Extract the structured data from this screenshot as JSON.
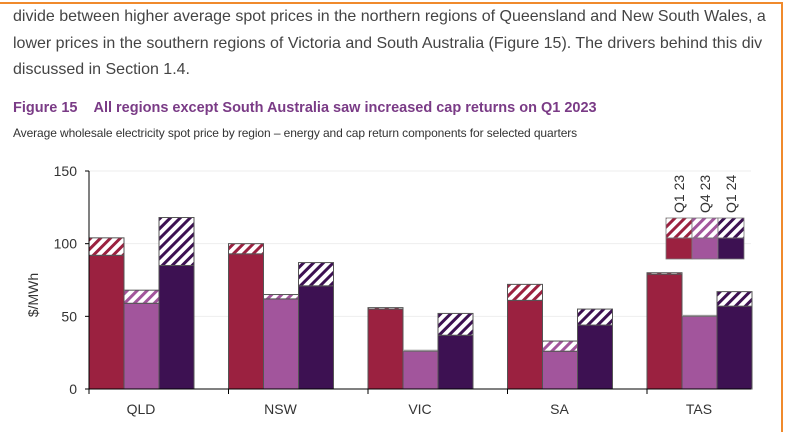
{
  "paragraph": {
    "lines": [
      "divide between higher average spot prices in the northern regions of Queensland and New South Wales, a",
      "lower prices in the southern regions of Victoria and South Australia (Figure 15). The drivers behind this div",
      "discussed in Section 1.4."
    ]
  },
  "figure": {
    "number": "Figure 15",
    "title": "All regions except South Australia saw increased cap returns on Q1 2023",
    "subtitle": "Average wholesale electricity spot price by region – energy  and cap return components for selected quarters"
  },
  "chart_data": {
    "type": "bar",
    "stacked": true,
    "ylabel": "$/MWh",
    "xlabel": "",
    "ylim": [
      0,
      150
    ],
    "yticks": [
      0,
      50,
      100,
      150
    ],
    "grid": true,
    "legend_position": "top-right",
    "categories": [
      "QLD",
      "NSW",
      "VIC",
      "SA",
      "TAS"
    ],
    "series": [
      {
        "name": "Q1 23",
        "color": "#9b2140",
        "energy": [
          92,
          93,
          55,
          61,
          79
        ],
        "cap_return": [
          12,
          7,
          1,
          11,
          1
        ]
      },
      {
        "name": "Q4 23",
        "color": "#a2559c",
        "energy": [
          59,
          62,
          26,
          26,
          50
        ],
        "cap_return": [
          9,
          3,
          0,
          7,
          0
        ]
      },
      {
        "name": "Q1 24",
        "color": "#3d1152",
        "energy": [
          85,
          71,
          37,
          44,
          57
        ],
        "cap_return": [
          33,
          16,
          15,
          11,
          10
        ]
      }
    ]
  }
}
